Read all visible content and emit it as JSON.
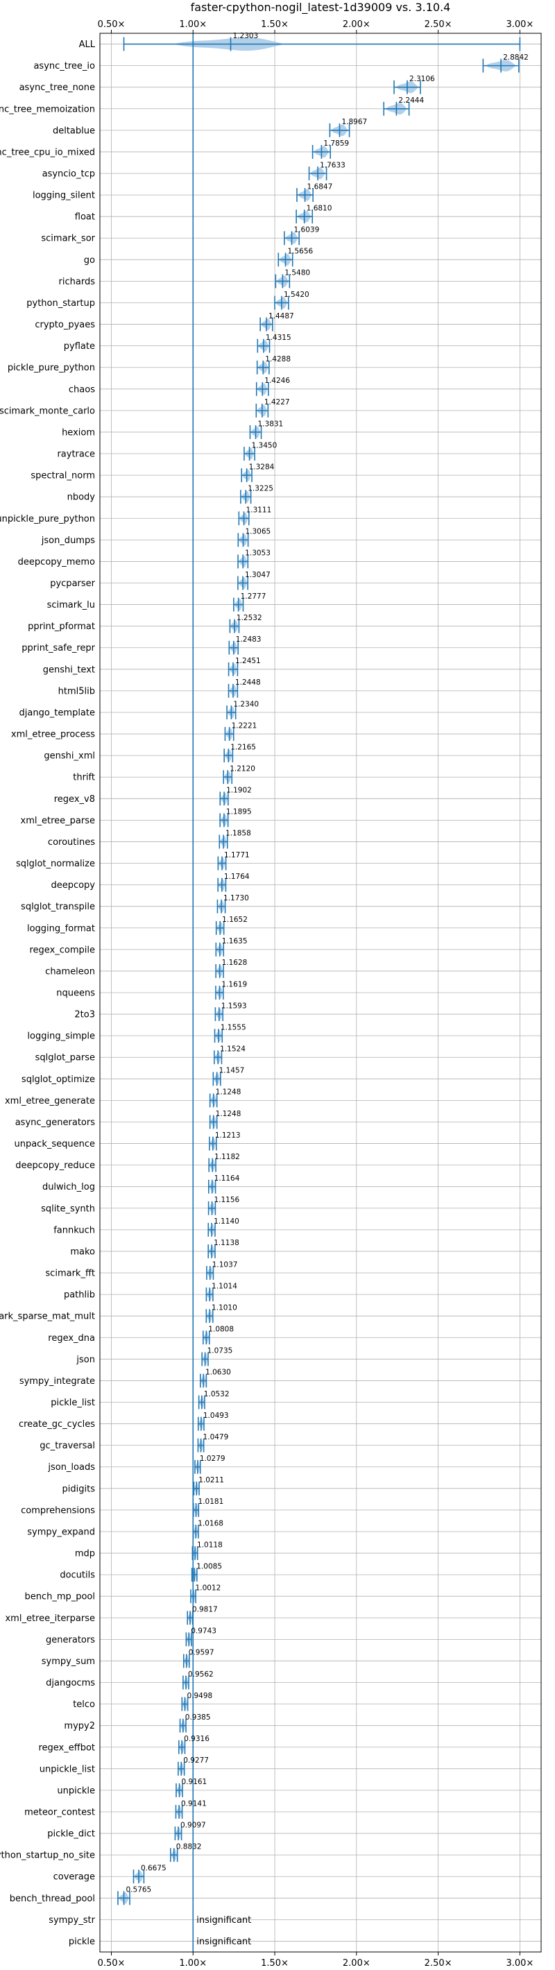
{
  "chart_data": {
    "type": "violin",
    "title": "faster-cpython-nogil_latest-1d39009 vs. 3.10.4",
    "x_ticks": [
      "0.50×",
      "1.00×",
      "1.50×",
      "2.00×",
      "2.50×",
      "3.00×"
    ],
    "x_tick_values": [
      0.5,
      1.0,
      1.5,
      2.0,
      2.5,
      3.0
    ],
    "xlim": [
      0.43,
      3.13
    ],
    "reference_line": 1.0,
    "grid": true,
    "insignificant_text": "insignificant",
    "benchmarks": [
      {
        "name": "ALL",
        "value": 1.2303,
        "label": "1.2303"
      },
      {
        "name": "async_tree_io",
        "value": 2.8842,
        "label": "2.8842"
      },
      {
        "name": "async_tree_none",
        "value": 2.3106,
        "label": "2.3106"
      },
      {
        "name": "async_tree_memoization",
        "value": 2.2444,
        "label": "2.2444"
      },
      {
        "name": "deltablue",
        "value": 1.8967,
        "label": "1.8967"
      },
      {
        "name": "async_tree_cpu_io_mixed",
        "value": 1.7859,
        "label": "1.7859"
      },
      {
        "name": "asyncio_tcp",
        "value": 1.7633,
        "label": "1.7633"
      },
      {
        "name": "logging_silent",
        "value": 1.6847,
        "label": "1.6847"
      },
      {
        "name": "float",
        "value": 1.681,
        "label": "1.6810"
      },
      {
        "name": "scimark_sor",
        "value": 1.6039,
        "label": "1.6039"
      },
      {
        "name": "go",
        "value": 1.5656,
        "label": "1.5656"
      },
      {
        "name": "richards",
        "value": 1.548,
        "label": "1.5480"
      },
      {
        "name": "python_startup",
        "value": 1.542,
        "label": "1.5420"
      },
      {
        "name": "crypto_pyaes",
        "value": 1.4487,
        "label": "1.4487"
      },
      {
        "name": "pyflate",
        "value": 1.4315,
        "label": "1.4315"
      },
      {
        "name": "pickle_pure_python",
        "value": 1.4288,
        "label": "1.4288"
      },
      {
        "name": "chaos",
        "value": 1.4246,
        "label": "1.4246"
      },
      {
        "name": "scimark_monte_carlo",
        "value": 1.4227,
        "label": "1.4227"
      },
      {
        "name": "hexiom",
        "value": 1.3831,
        "label": "1.3831"
      },
      {
        "name": "raytrace",
        "value": 1.345,
        "label": "1.3450"
      },
      {
        "name": "spectral_norm",
        "value": 1.3284,
        "label": "1.3284"
      },
      {
        "name": "nbody",
        "value": 1.3225,
        "label": "1.3225"
      },
      {
        "name": "unpickle_pure_python",
        "value": 1.3111,
        "label": "1.3111"
      },
      {
        "name": "json_dumps",
        "value": 1.3065,
        "label": "1.3065"
      },
      {
        "name": "deepcopy_memo",
        "value": 1.3053,
        "label": "1.3053"
      },
      {
        "name": "pycparser",
        "value": 1.3047,
        "label": "1.3047"
      },
      {
        "name": "scimark_lu",
        "value": 1.2777,
        "label": "1.2777"
      },
      {
        "name": "pprint_pformat",
        "value": 1.2532,
        "label": "1.2532"
      },
      {
        "name": "pprint_safe_repr",
        "value": 1.2483,
        "label": "1.2483"
      },
      {
        "name": "genshi_text",
        "value": 1.2451,
        "label": "1.2451"
      },
      {
        "name": "html5lib",
        "value": 1.2448,
        "label": "1.2448"
      },
      {
        "name": "django_template",
        "value": 1.234,
        "label": "1.2340"
      },
      {
        "name": "xml_etree_process",
        "value": 1.2221,
        "label": "1.2221"
      },
      {
        "name": "genshi_xml",
        "value": 1.2165,
        "label": "1.2165"
      },
      {
        "name": "thrift",
        "value": 1.212,
        "label": "1.2120"
      },
      {
        "name": "regex_v8",
        "value": 1.1902,
        "label": "1.1902"
      },
      {
        "name": "xml_etree_parse",
        "value": 1.1895,
        "label": "1.1895"
      },
      {
        "name": "coroutines",
        "value": 1.1858,
        "label": "1.1858"
      },
      {
        "name": "sqlglot_normalize",
        "value": 1.1771,
        "label": "1.1771"
      },
      {
        "name": "deepcopy",
        "value": 1.1764,
        "label": "1.1764"
      },
      {
        "name": "sqlglot_transpile",
        "value": 1.173,
        "label": "1.1730"
      },
      {
        "name": "logging_format",
        "value": 1.1652,
        "label": "1.1652"
      },
      {
        "name": "regex_compile",
        "value": 1.1635,
        "label": "1.1635"
      },
      {
        "name": "chameleon",
        "value": 1.1628,
        "label": "1.1628"
      },
      {
        "name": "nqueens",
        "value": 1.1619,
        "label": "1.1619"
      },
      {
        "name": "2to3",
        "value": 1.1593,
        "label": "1.1593"
      },
      {
        "name": "logging_simple",
        "value": 1.1555,
        "label": "1.1555"
      },
      {
        "name": "sqlglot_parse",
        "value": 1.1524,
        "label": "1.1524"
      },
      {
        "name": "sqlglot_optimize",
        "value": 1.1457,
        "label": "1.1457"
      },
      {
        "name": "xml_etree_generate",
        "value": 1.1248,
        "label": "1.1248"
      },
      {
        "name": "async_generators",
        "value": 1.1248,
        "label": "1.1248"
      },
      {
        "name": "unpack_sequence",
        "value": 1.1213,
        "label": "1.1213"
      },
      {
        "name": "deepcopy_reduce",
        "value": 1.1182,
        "label": "1.1182"
      },
      {
        "name": "dulwich_log",
        "value": 1.1164,
        "label": "1.1164"
      },
      {
        "name": "sqlite_synth",
        "value": 1.1156,
        "label": "1.1156"
      },
      {
        "name": "fannkuch",
        "value": 1.114,
        "label": "1.1140"
      },
      {
        "name": "mako",
        "value": 1.1138,
        "label": "1.1138"
      },
      {
        "name": "scimark_fft",
        "value": 1.1037,
        "label": "1.1037"
      },
      {
        "name": "pathlib",
        "value": 1.1014,
        "label": "1.1014"
      },
      {
        "name": "scimark_sparse_mat_mult",
        "value": 1.101,
        "label": "1.1010"
      },
      {
        "name": "regex_dna",
        "value": 1.0808,
        "label": "1.0808"
      },
      {
        "name": "json",
        "value": 1.0735,
        "label": "1.0735"
      },
      {
        "name": "sympy_integrate",
        "value": 1.063,
        "label": "1.0630"
      },
      {
        "name": "pickle_list",
        "value": 1.0532,
        "label": "1.0532"
      },
      {
        "name": "create_gc_cycles",
        "value": 1.0493,
        "label": "1.0493"
      },
      {
        "name": "gc_traversal",
        "value": 1.0479,
        "label": "1.0479"
      },
      {
        "name": "json_loads",
        "value": 1.0279,
        "label": "1.0279"
      },
      {
        "name": "pidigits",
        "value": 1.0211,
        "label": "1.0211"
      },
      {
        "name": "comprehensions",
        "value": 1.0181,
        "label": "1.0181"
      },
      {
        "name": "sympy_expand",
        "value": 1.0168,
        "label": "1.0168"
      },
      {
        "name": "mdp",
        "value": 1.0118,
        "label": "1.0118"
      },
      {
        "name": "docutils",
        "value": 1.0085,
        "label": "1.0085"
      },
      {
        "name": "bench_mp_pool",
        "value": 1.0012,
        "label": "1.0012"
      },
      {
        "name": "xml_etree_iterparse",
        "value": 0.9817,
        "label": "0.9817"
      },
      {
        "name": "generators",
        "value": 0.9743,
        "label": "0.9743"
      },
      {
        "name": "sympy_sum",
        "value": 0.9597,
        "label": "0.9597"
      },
      {
        "name": "djangocms",
        "value": 0.9562,
        "label": "0.9562"
      },
      {
        "name": "telco",
        "value": 0.9498,
        "label": "0.9498"
      },
      {
        "name": "mypy2",
        "value": 0.9385,
        "label": "0.9385"
      },
      {
        "name": "regex_effbot",
        "value": 0.9316,
        "label": "0.9316"
      },
      {
        "name": "unpickle_list",
        "value": 0.9277,
        "label": "0.9277"
      },
      {
        "name": "unpickle",
        "value": 0.9161,
        "label": "0.9161"
      },
      {
        "name": "meteor_contest",
        "value": 0.9141,
        "label": "0.9141"
      },
      {
        "name": "pickle_dict",
        "value": 0.9097,
        "label": "0.9097"
      },
      {
        "name": "python_startup_no_site",
        "value": 0.8832,
        "label": "0.8832"
      },
      {
        "name": "coverage",
        "value": 0.6675,
        "label": "0.6675"
      },
      {
        "name": "bench_thread_pool",
        "value": 0.5765,
        "label": "0.5765"
      },
      {
        "name": "sympy_str",
        "value": null,
        "label": "insignificant"
      },
      {
        "name": "pickle",
        "value": null,
        "label": "insignificant"
      }
    ],
    "colors": {
      "violin_fill": "#a6c8e6",
      "marker": "#1f77b4",
      "grid": "#b0b0b0",
      "axis": "#000000"
    }
  }
}
